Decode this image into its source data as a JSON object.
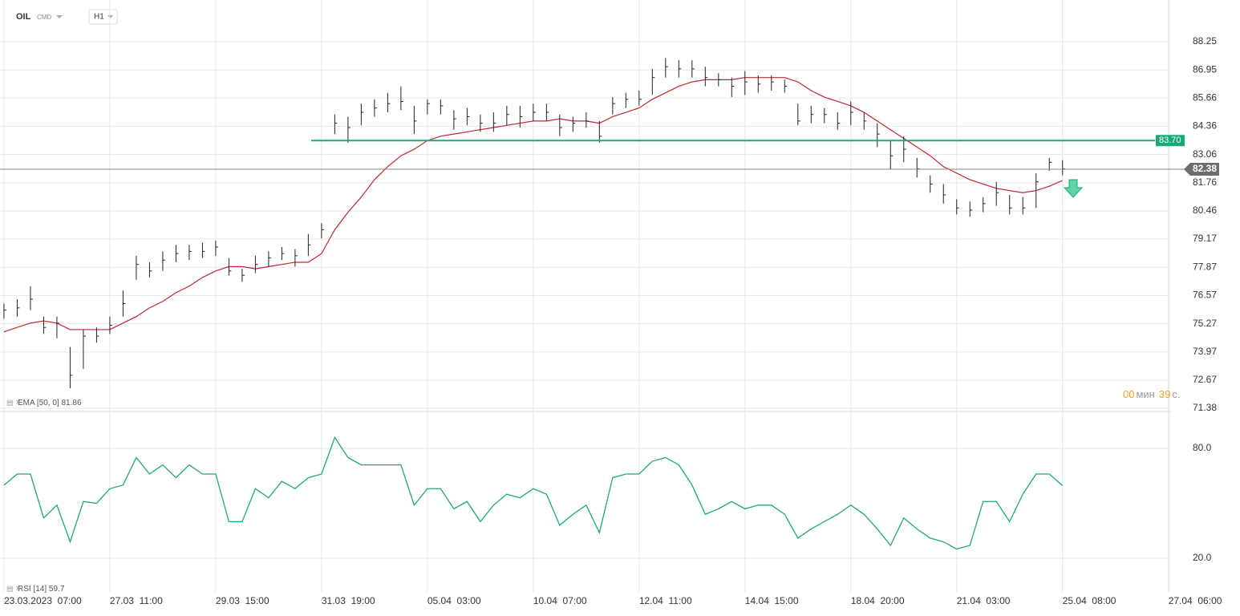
{
  "chart_data": [
    {
      "type": "ohlc",
      "title": "OIL",
      "subtitle": "CMD",
      "timeframe": "H1",
      "color": "#222222",
      "high": [
        76.2,
        76.4,
        77.0,
        75.6,
        75.6,
        74.2,
        75.0,
        75.1,
        75.6,
        76.8,
        78.4,
        78.1,
        78.6,
        78.9,
        78.9,
        79.0,
        79.1,
        78.3,
        77.8,
        78.4,
        78.6,
        78.8,
        78.7,
        79.4,
        79.9,
        84.9,
        84.8,
        85.4,
        85.6,
        85.9,
        86.2,
        85.3,
        85.6,
        85.6,
        85.1,
        85.2,
        84.9,
        85.0,
        85.3,
        85.3,
        85.4,
        85.4,
        84.9,
        84.8,
        85.0,
        84.6,
        85.7,
        85.9,
        86.0,
        87.0,
        87.5,
        87.4,
        87.4,
        87.1,
        86.8,
        86.6,
        86.9,
        86.7,
        86.7,
        86.5,
        85.4,
        85.3,
        85.2,
        85.0,
        85.5,
        85.0,
        84.5,
        83.7,
        83.9,
        82.9,
        82.1,
        81.7,
        81.0,
        80.9,
        81.1,
        81.8,
        81.2,
        81.1,
        82.2,
        82.9,
        82.8
      ],
      "low": [
        75.5,
        75.6,
        75.9,
        74.8,
        74.6,
        72.3,
        73.2,
        74.4,
        74.8,
        75.6,
        77.3,
        77.4,
        77.7,
        78.1,
        78.2,
        78.3,
        78.4,
        77.5,
        77.2,
        77.6,
        77.9,
        78.2,
        77.9,
        78.4,
        79.2,
        84.0,
        83.6,
        84.4,
        84.8,
        85.0,
        85.1,
        84.0,
        84.9,
        84.9,
        84.2,
        84.4,
        84.1,
        84.1,
        84.4,
        84.3,
        84.6,
        84.6,
        83.9,
        84.1,
        84.3,
        83.6,
        84.9,
        85.2,
        85.3,
        85.8,
        86.6,
        86.6,
        86.6,
        86.2,
        86.2,
        85.7,
        85.8,
        85.9,
        86.0,
        85.9,
        84.4,
        84.5,
        84.5,
        84.2,
        84.4,
        84.2,
        83.4,
        82.4,
        82.7,
        82.0,
        81.3,
        80.8,
        80.3,
        80.2,
        80.4,
        80.7,
        80.3,
        80.3,
        80.6,
        82.3,
        82.1
      ],
      "close": [
        75.9,
        76.0,
        76.4,
        75.1,
        75.3,
        72.9,
        74.7,
        74.7,
        75.2,
        76.2,
        78.0,
        77.7,
        78.2,
        78.5,
        78.6,
        78.6,
        78.8,
        77.7,
        77.5,
        78.0,
        78.3,
        78.5,
        78.4,
        78.9,
        79.6,
        84.5,
        84.3,
        85.0,
        85.2,
        85.4,
        85.5,
        84.6,
        85.4,
        85.3,
        84.7,
        84.8,
        84.5,
        84.5,
        84.9,
        84.8,
        85.0,
        85.0,
        84.3,
        84.5,
        84.6,
        83.9,
        85.4,
        85.6,
        85.6,
        86.6,
        87.1,
        87.0,
        87.0,
        86.6,
        86.5,
        86.2,
        86.4,
        86.3,
        86.4,
        86.2,
        84.6,
        84.9,
        84.9,
        84.5,
        85.0,
        84.6,
        84.0,
        83.0,
        83.3,
        82.4,
        81.7,
        81.2,
        80.6,
        80.5,
        80.8,
        81.3,
        80.6,
        80.6,
        81.8,
        82.7,
        82.4
      ],
      "ema": {
        "name": "EMA [50, 0]",
        "value": 81.86,
        "color": "#c0262d",
        "values": [
          74.9,
          75.1,
          75.3,
          75.4,
          75.3,
          75.0,
          75.0,
          75.0,
          75.0,
          75.3,
          75.6,
          76.0,
          76.3,
          76.7,
          77.0,
          77.4,
          77.7,
          77.9,
          77.9,
          77.8,
          77.9,
          78.0,
          78.1,
          78.1,
          78.5,
          79.6,
          80.4,
          81.1,
          81.9,
          82.5,
          83.0,
          83.3,
          83.7,
          83.9,
          84.0,
          84.1,
          84.2,
          84.3,
          84.4,
          84.5,
          84.6,
          84.6,
          84.7,
          84.6,
          84.6,
          84.5,
          84.8,
          85.0,
          85.2,
          85.6,
          85.9,
          86.2,
          86.4,
          86.5,
          86.5,
          86.5,
          86.6,
          86.6,
          86.6,
          86.6,
          86.4,
          86.0,
          85.7,
          85.5,
          85.3,
          85.0,
          84.6,
          84.2,
          83.8,
          83.4,
          83.0,
          82.5,
          82.2,
          81.9,
          81.7,
          81.5,
          81.4,
          81.3,
          81.4,
          81.6,
          81.86
        ]
      },
      "level": {
        "value": 83.7,
        "label": "83.70",
        "color": "#1aa97b"
      },
      "last_price": 82.38,
      "timer": {
        "minutes": "00",
        "min_label": "мин",
        "seconds": "39",
        "sec_label": "с."
      },
      "xlim": [
        -0.3,
        88.2
      ],
      "xticks": [
        {
          "value": 0,
          "label": "23.03.2023  07:00"
        },
        {
          "value": 8,
          "label": "27.03  11:00"
        },
        {
          "value": 16,
          "label": "29.03  15:00"
        },
        {
          "value": 24,
          "label": "31.03  19:00"
        },
        {
          "value": 32,
          "label": "05.04  03:00"
        },
        {
          "value": 40,
          "label": "10.04  07:00"
        },
        {
          "value": 48,
          "label": "12.04  11:00"
        },
        {
          "value": 56,
          "label": "14.04  15:00"
        },
        {
          "value": 64,
          "label": "18.04  20:00"
        },
        {
          "value": 72,
          "label": "21.04  03:00"
        },
        {
          "value": 80,
          "label": "25.04  08:00"
        },
        {
          "value": 88,
          "label": "27.04  06:00"
        }
      ],
      "ylim": [
        71.27,
        89.8
      ],
      "yticks": [
        88.25,
        86.95,
        85.66,
        84.36,
        83.06,
        81.76,
        80.46,
        79.17,
        77.87,
        76.57,
        75.27,
        73.97,
        72.67,
        71.38
      ]
    },
    {
      "type": "line",
      "series": [
        {
          "name": "RSI [14]",
          "value": 59.7,
          "color": "#1aa97b",
          "values": [
            59.9,
            66,
            66,
            42,
            49,
            29,
            51,
            50,
            58,
            60,
            75,
            66,
            71,
            64,
            71,
            66,
            66,
            40,
            40,
            58,
            53,
            62,
            58,
            64,
            66,
            86,
            75,
            71,
            71,
            71,
            71,
            49,
            58,
            58,
            47,
            51,
            40,
            49,
            55,
            53,
            58,
            55,
            38,
            44,
            49,
            34,
            64,
            66,
            66,
            73,
            75,
            71,
            60,
            44,
            47,
            51,
            47,
            49,
            49,
            44,
            31,
            36,
            40,
            44,
            49,
            44,
            36,
            27,
            42,
            36,
            31,
            29,
            25,
            27,
            51,
            51,
            40,
            55,
            66,
            66,
            59.7
          ]
        }
      ],
      "ylim": [
        1.6,
        99.3
      ],
      "yticks": [
        {
          "value": 80,
          "label": "80.0"
        },
        {
          "value": 20,
          "label": "20.0"
        }
      ]
    }
  ]
}
